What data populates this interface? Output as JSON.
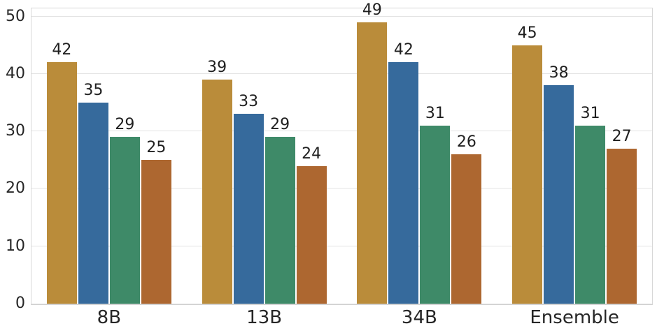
{
  "chart_data": {
    "type": "bar",
    "title": "",
    "xlabel": "",
    "ylabel": "",
    "categories": [
      "8B",
      "13B",
      "34B",
      "Ensemble"
    ],
    "series": [
      {
        "name": "series-gold",
        "color": "#ba8c3a",
        "values": [
          42,
          39,
          49,
          45
        ]
      },
      {
        "name": "series-blue",
        "color": "#366a9c",
        "values": [
          35,
          33,
          42,
          38
        ]
      },
      {
        "name": "series-green",
        "color": "#3e8a68",
        "values": [
          29,
          29,
          31,
          31
        ]
      },
      {
        "name": "series-sienna",
        "color": "#ad6730",
        "values": [
          25,
          24,
          26,
          27
        ]
      }
    ],
    "bar_labels_shown": true,
    "yticks": [
      0,
      10,
      20,
      30,
      40,
      50
    ],
    "ylim": [
      0,
      51.4
    ],
    "grid": "horizontal",
    "legend": "none",
    "colors": {
      "background": "#ffffff",
      "grid_line": "#e3e3e3",
      "spine": "#d8d8d8",
      "tick_label_text": "#262626",
      "bar_label_text": "#1f1f1f"
    }
  }
}
